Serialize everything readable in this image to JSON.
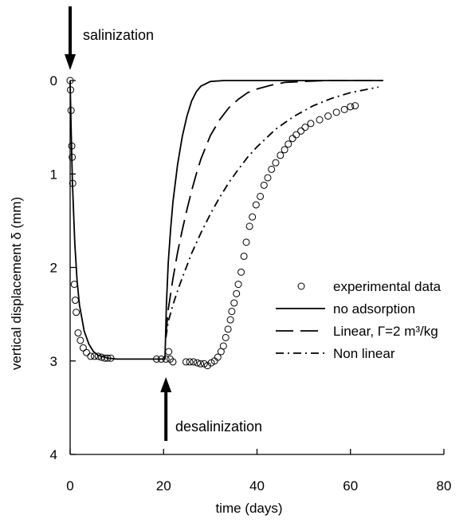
{
  "chart_data": {
    "type": "line",
    "xlabel": "time (days)",
    "ylabel": "vertical displacement δ (mm)",
    "xlim": [
      0,
      80
    ],
    "ylim": [
      0,
      4
    ],
    "y_inverted": true,
    "xticks": [
      "0",
      "20",
      "40",
      "60",
      "80"
    ],
    "yticks": [
      "0",
      "1",
      "2",
      "3",
      "4"
    ],
    "grid": false,
    "legend_position": "right-middle",
    "annotations": [
      {
        "text": "salinization",
        "arrow": "down",
        "at_x": 0
      },
      {
        "text": "desalinization",
        "arrow": "up",
        "at_x": 20.5
      }
    ],
    "series": [
      {
        "name": "experimental data",
        "style": "open-circle",
        "points": [
          [
            0.0,
            0.0
          ],
          [
            0.1,
            0.1
          ],
          [
            0.2,
            0.32
          ],
          [
            0.35,
            0.7
          ],
          [
            0.45,
            0.82
          ],
          [
            0.55,
            1.1
          ],
          [
            0.9,
            2.18
          ],
          [
            1.1,
            2.35
          ],
          [
            1.3,
            2.48
          ],
          [
            1.7,
            2.7
          ],
          [
            2.2,
            2.78
          ],
          [
            2.8,
            2.86
          ],
          [
            3.5,
            2.91
          ],
          [
            4.4,
            2.95
          ],
          [
            5.2,
            2.95
          ],
          [
            6.0,
            2.95
          ],
          [
            6.7,
            2.96
          ],
          [
            7.4,
            2.97
          ],
          [
            8.0,
            2.97
          ],
          [
            8.7,
            2.97
          ],
          [
            18.5,
            2.98
          ],
          [
            19.5,
            2.98
          ],
          [
            20.5,
            2.98
          ],
          [
            21.4,
            2.98
          ],
          [
            21.1,
            2.9
          ],
          [
            22.0,
            3.01
          ],
          [
            24.8,
            3.01
          ],
          [
            25.6,
            3.01
          ],
          [
            26.4,
            3.01
          ],
          [
            27.2,
            3.02
          ],
          [
            27.9,
            3.03
          ],
          [
            28.7,
            3.03
          ],
          [
            29.4,
            3.05
          ],
          [
            30.2,
            3.02
          ],
          [
            30.9,
            3.0
          ],
          [
            31.6,
            2.96
          ],
          [
            32.3,
            2.9
          ],
          [
            32.8,
            2.84
          ],
          [
            33.3,
            2.75
          ],
          [
            33.8,
            2.66
          ],
          [
            34.3,
            2.56
          ],
          [
            34.6,
            2.47
          ],
          [
            35.1,
            2.38
          ],
          [
            35.6,
            2.28
          ],
          [
            36.0,
            2.18
          ],
          [
            36.6,
            2.05
          ],
          [
            37.2,
            1.88
          ],
          [
            37.7,
            1.73
          ],
          [
            38.4,
            1.56
          ],
          [
            39.0,
            1.46
          ],
          [
            39.8,
            1.33
          ],
          [
            40.7,
            1.24
          ],
          [
            41.5,
            1.12
          ],
          [
            42.3,
            1.04
          ],
          [
            43.1,
            0.95
          ],
          [
            44.0,
            0.88
          ],
          [
            45.0,
            0.8
          ],
          [
            45.9,
            0.74
          ],
          [
            46.7,
            0.68
          ],
          [
            47.6,
            0.62
          ],
          [
            48.4,
            0.58
          ],
          [
            49.4,
            0.54
          ],
          [
            50.3,
            0.5
          ],
          [
            51.5,
            0.46
          ],
          [
            53.4,
            0.42
          ],
          [
            55.2,
            0.38
          ],
          [
            57.0,
            0.34
          ],
          [
            58.7,
            0.31
          ],
          [
            60.0,
            0.28
          ],
          [
            61.0,
            0.27
          ]
        ]
      },
      {
        "name": "no adsorption",
        "style": "solid",
        "points": [
          [
            0.0,
            0.0
          ],
          [
            0.2,
            0.5
          ],
          [
            0.5,
            1.1
          ],
          [
            1.0,
            1.75
          ],
          [
            1.5,
            2.15
          ],
          [
            2.0,
            2.4
          ],
          [
            3.0,
            2.68
          ],
          [
            4.0,
            2.82
          ],
          [
            5.0,
            2.9
          ],
          [
            6.0,
            2.94
          ],
          [
            8.0,
            2.97
          ],
          [
            10.0,
            2.98
          ],
          [
            20.3,
            2.98
          ],
          [
            20.6,
            2.4
          ],
          [
            21.0,
            1.95
          ],
          [
            21.5,
            1.6
          ],
          [
            22.0,
            1.3
          ],
          [
            23.0,
            0.9
          ],
          [
            24.0,
            0.6
          ],
          [
            25.0,
            0.38
          ],
          [
            26.0,
            0.22
          ],
          [
            27.0,
            0.12
          ],
          [
            28.0,
            0.06
          ],
          [
            30.0,
            0.01
          ],
          [
            33.0,
            0.0
          ],
          [
            67.0,
            0.0
          ]
        ]
      },
      {
        "name": "Linear, Γ=2 m³/kg",
        "style": "long-dash",
        "points": [
          [
            20.5,
            2.72
          ],
          [
            21.0,
            2.45
          ],
          [
            22.0,
            2.12
          ],
          [
            23.0,
            1.84
          ],
          [
            24.0,
            1.6
          ],
          [
            25.0,
            1.38
          ],
          [
            26.0,
            1.18
          ],
          [
            27.0,
            1.0
          ],
          [
            28.0,
            0.84
          ],
          [
            30.0,
            0.59
          ],
          [
            32.0,
            0.42
          ],
          [
            34.0,
            0.29
          ],
          [
            36.0,
            0.2
          ],
          [
            38.0,
            0.13
          ],
          [
            40.0,
            0.09
          ],
          [
            43.0,
            0.05
          ],
          [
            46.0,
            0.02
          ],
          [
            50.0,
            0.01
          ],
          [
            55.0,
            0.0
          ],
          [
            67.0,
            0.0
          ]
        ]
      },
      {
        "name": "Non linear",
        "style": "dash-dot",
        "points": [
          [
            20.5,
            2.75
          ],
          [
            21.0,
            2.58
          ],
          [
            22.0,
            2.4
          ],
          [
            23.0,
            2.25
          ],
          [
            24.0,
            2.11
          ],
          [
            25.0,
            1.98
          ],
          [
            26.0,
            1.85
          ],
          [
            28.0,
            1.63
          ],
          [
            30.0,
            1.43
          ],
          [
            32.0,
            1.25
          ],
          [
            34.0,
            1.09
          ],
          [
            36.0,
            0.95
          ],
          [
            38.0,
            0.82
          ],
          [
            40.0,
            0.71
          ],
          [
            44.0,
            0.52
          ],
          [
            48.0,
            0.38
          ],
          [
            52.0,
            0.27
          ],
          [
            56.0,
            0.19
          ],
          [
            60.0,
            0.13
          ],
          [
            63.0,
            0.1
          ],
          [
            66.0,
            0.07
          ]
        ]
      }
    ]
  }
}
